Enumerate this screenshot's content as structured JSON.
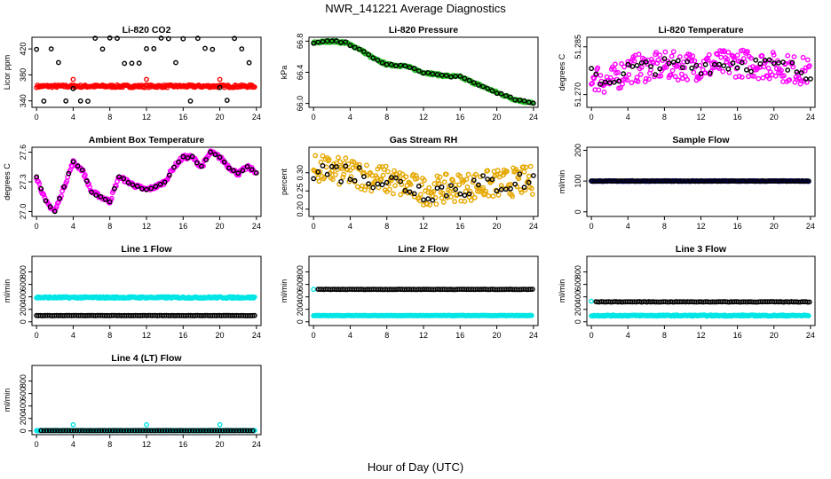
{
  "figure": {
    "title": "NWR_141221  Average Diagnostics",
    "xlabel": "Hour of Day (UTC)"
  },
  "chart_data": [
    {
      "type": "scatter",
      "title": "Li-820 CO2",
      "ylabel": "Licor ppm",
      "xlim": [
        -0.5,
        24.5
      ],
      "ylim": [
        330,
        438
      ],
      "xticks": [
        0,
        4,
        8,
        12,
        16,
        20,
        24
      ],
      "yticks": [
        340,
        380,
        420
      ],
      "series": [
        {
          "color": "#ff0000",
          "pattern": "band",
          "level": 362.5,
          "spread": 2,
          "outliers": [
            [
              4,
              373
            ],
            [
              12,
              373
            ],
            [
              20,
              373
            ]
          ]
        },
        {
          "color": "#000000",
          "pattern": "levels",
          "levels": [
            340,
            360,
            398,
            420,
            436
          ]
        }
      ]
    },
    {
      "type": "scatter",
      "title": "Li-820 Pressure",
      "ylabel": "kPa",
      "xlim": [
        -0.5,
        24.5
      ],
      "ylim": [
        65.95,
        66.85
      ],
      "xticks": [
        0,
        4,
        8,
        12,
        16,
        20,
        24
      ],
      "yticks": [
        66.0,
        66.4,
        66.8
      ],
      "yprec": 1,
      "series": [
        {
          "color": "#22bb22",
          "pattern": "curve",
          "noise": 0.015,
          "knots": [
            [
              0,
              66.78
            ],
            [
              2,
              66.8
            ],
            [
              3.5,
              66.78
            ],
            [
              5,
              66.7
            ],
            [
              6.5,
              66.58
            ],
            [
              8,
              66.5
            ],
            [
              10,
              66.48
            ],
            [
              12,
              66.4
            ],
            [
              14,
              66.36
            ],
            [
              16,
              66.34
            ],
            [
              18,
              66.24
            ],
            [
              20,
              66.14
            ],
            [
              22,
              66.05
            ],
            [
              24,
              66.0
            ]
          ]
        },
        {
          "color": "#000000",
          "pattern": "curve",
          "noise": 0.01,
          "step": 0.5,
          "knots": [
            [
              0,
              66.78
            ],
            [
              2,
              66.8
            ],
            [
              3.5,
              66.78
            ],
            [
              5,
              66.7
            ],
            [
              6.5,
              66.58
            ],
            [
              8,
              66.5
            ],
            [
              10,
              66.48
            ],
            [
              12,
              66.4
            ],
            [
              14,
              66.36
            ],
            [
              16,
              66.34
            ],
            [
              18,
              66.24
            ],
            [
              20,
              66.14
            ],
            [
              22,
              66.05
            ],
            [
              24,
              66.0
            ]
          ]
        }
      ]
    },
    {
      "type": "scatter",
      "title": "Li-820 Temperature",
      "ylabel": "degrees C",
      "xlim": [
        -0.5,
        24.5
      ],
      "ylim": [
        51.266,
        51.288
      ],
      "xticks": [
        0,
        4,
        8,
        12,
        16,
        20,
        24
      ],
      "yticks": [
        51.27,
        51.285
      ],
      "yprec": 3,
      "series": [
        {
          "color": "#ff00ff",
          "pattern": "curve",
          "noise": 0.0045,
          "knots": [
            [
              0,
              51.276
            ],
            [
              2,
              51.274
            ],
            [
              4,
              51.278
            ],
            [
              8,
              51.279
            ],
            [
              12,
              51.279
            ],
            [
              16,
              51.28
            ],
            [
              20,
              51.279
            ],
            [
              24,
              51.277
            ]
          ]
        },
        {
          "color": "#000000",
          "pattern": "curve",
          "noise": 0.0025,
          "step": 0.5,
          "knots": [
            [
              0,
              51.276
            ],
            [
              2,
              51.274
            ],
            [
              4,
              51.278
            ],
            [
              8,
              51.279
            ],
            [
              12,
              51.279
            ],
            [
              16,
              51.28
            ],
            [
              20,
              51.279
            ],
            [
              24,
              51.277
            ]
          ]
        }
      ]
    },
    {
      "type": "scatter",
      "title": "Ambient Box Temperature",
      "ylabel": "degrees C",
      "xlim": [
        -0.5,
        24.5
      ],
      "ylim": [
        26.95,
        27.65
      ],
      "xticks": [
        0,
        4,
        8,
        12,
        16,
        20,
        24
      ],
      "yticks": [
        27.0,
        27.3,
        27.6
      ],
      "yprec": 1,
      "series": [
        {
          "color": "#ff00ff",
          "pattern": "curve",
          "noise": 0.02,
          "knots": [
            [
              0,
              27.35
            ],
            [
              1,
              27.1
            ],
            [
              2,
              27.0
            ],
            [
              3,
              27.25
            ],
            [
              4,
              27.5
            ],
            [
              5,
              27.42
            ],
            [
              6,
              27.2
            ],
            [
              7,
              27.15
            ],
            [
              8,
              27.1
            ],
            [
              9,
              27.35
            ],
            [
              10,
              27.3
            ],
            [
              11,
              27.25
            ],
            [
              12,
              27.22
            ],
            [
              13,
              27.25
            ],
            [
              14,
              27.3
            ],
            [
              15,
              27.45
            ],
            [
              16,
              27.55
            ],
            [
              17,
              27.55
            ],
            [
              18,
              27.45
            ],
            [
              19,
              27.6
            ],
            [
              20,
              27.55
            ],
            [
              21,
              27.45
            ],
            [
              22,
              27.38
            ],
            [
              23,
              27.45
            ],
            [
              24,
              27.4
            ]
          ]
        },
        {
          "color": "#000000",
          "pattern": "curve",
          "noise": 0.01,
          "step": 0.5,
          "knots": [
            [
              0,
              27.35
            ],
            [
              1,
              27.1
            ],
            [
              2,
              27.0
            ],
            [
              3,
              27.25
            ],
            [
              4,
              27.5
            ],
            [
              5,
              27.42
            ],
            [
              6,
              27.2
            ],
            [
              7,
              27.15
            ],
            [
              8,
              27.1
            ],
            [
              9,
              27.35
            ],
            [
              10,
              27.3
            ],
            [
              11,
              27.25
            ],
            [
              12,
              27.22
            ],
            [
              13,
              27.25
            ],
            [
              14,
              27.3
            ],
            [
              15,
              27.45
            ],
            [
              16,
              27.55
            ],
            [
              17,
              27.55
            ],
            [
              18,
              27.45
            ],
            [
              19,
              27.6
            ],
            [
              20,
              27.55
            ],
            [
              21,
              27.45
            ],
            [
              22,
              27.38
            ],
            [
              23,
              27.45
            ],
            [
              24,
              27.4
            ]
          ]
        }
      ]
    },
    {
      "type": "scatter",
      "title": "Gas Stream RH",
      "ylabel": "percent",
      "xlim": [
        -0.5,
        24.5
      ],
      "ylim": [
        0.18,
        0.37
      ],
      "xticks": [
        0,
        4,
        8,
        12,
        16,
        20,
        24
      ],
      "yticks": [
        0.2,
        0.25,
        0.3
      ],
      "yprec": 2,
      "series": [
        {
          "color": "#e6a800",
          "pattern": "curve",
          "noise": 0.04,
          "knots": [
            [
              0,
              0.31
            ],
            [
              4,
              0.3
            ],
            [
              8,
              0.28
            ],
            [
              12,
              0.25
            ],
            [
              16,
              0.26
            ],
            [
              20,
              0.27
            ],
            [
              24,
              0.28
            ]
          ]
        },
        {
          "color": "#000000",
          "pattern": "curve",
          "noise": 0.03,
          "step": 0.5,
          "knots": [
            [
              0,
              0.31
            ],
            [
              4,
              0.3
            ],
            [
              8,
              0.28
            ],
            [
              12,
              0.25
            ],
            [
              16,
              0.26
            ],
            [
              20,
              0.27
            ],
            [
              24,
              0.28
            ]
          ]
        }
      ]
    },
    {
      "type": "scatter",
      "title": "Sample Flow",
      "ylabel": "ml/min",
      "xlim": [
        -0.5,
        24.5
      ],
      "ylim": [
        -15,
        210
      ],
      "xticks": [
        0,
        4,
        8,
        12,
        16,
        20,
        24
      ],
      "yticks": [
        0,
        100,
        200
      ],
      "series": [
        {
          "color": "#0000cc",
          "pattern": "band",
          "level": 100,
          "spread": 1
        },
        {
          "color": "#000000",
          "pattern": "band",
          "level": 100,
          "spread": 0.5,
          "step": 0.2
        }
      ]
    },
    {
      "type": "scatter",
      "title": "Line 1 Flow",
      "ylabel": "ml/min",
      "xlim": [
        -0.5,
        24.5
      ],
      "ylim": [
        -60,
        1050
      ],
      "xticks": [
        0,
        4,
        8,
        12,
        16,
        20,
        24
      ],
      "yticks": [
        0,
        200,
        400,
        600,
        800
      ],
      "series": [
        {
          "color": "#00e5e5",
          "pattern": "band",
          "level": 390,
          "spread": 12
        },
        {
          "color": "#000000",
          "pattern": "band",
          "level": 100,
          "spread": 2,
          "step": 0.2
        }
      ]
    },
    {
      "type": "scatter",
      "title": "Line 2 Flow",
      "ylabel": "ml/min",
      "xlim": [
        -0.5,
        24.5
      ],
      "ylim": [
        -60,
        1050
      ],
      "xticks": [
        0,
        4,
        8,
        12,
        16,
        20,
        24
      ],
      "yticks": [
        0,
        200,
        400,
        600,
        800
      ],
      "series": [
        {
          "color": "#00e5e5",
          "pattern": "band",
          "level": 100,
          "spread": 4,
          "extra": [
            [
              0,
              520
            ]
          ]
        },
        {
          "color": "#000000",
          "pattern": "band",
          "level": 520,
          "spread": 3,
          "step": 0.2,
          "xstart": 0.5
        }
      ]
    },
    {
      "type": "scatter",
      "title": "Line 3 Flow",
      "ylabel": "ml/min",
      "xlim": [
        -0.5,
        24.5
      ],
      "ylim": [
        -60,
        1050
      ],
      "xticks": [
        0,
        4,
        8,
        12,
        16,
        20,
        24
      ],
      "yticks": [
        0,
        200,
        400,
        600,
        800
      ],
      "series": [
        {
          "color": "#00e5e5",
          "pattern": "band",
          "level": 100,
          "spread": 8,
          "extra": [
            [
              0,
              330
            ]
          ]
        },
        {
          "color": "#000000",
          "pattern": "band",
          "level": 320,
          "spread": 4,
          "step": 0.2,
          "xstart": 0.5
        }
      ]
    },
    {
      "type": "scatter",
      "title": "Line 4 (LT) Flow",
      "ylabel": "ml/min",
      "xlim": [
        -0.5,
        24.5
      ],
      "ylim": [
        -60,
        1050
      ],
      "xticks": [
        0,
        4,
        8,
        12,
        16,
        20,
        24
      ],
      "yticks": [
        0,
        200,
        400,
        600,
        800
      ],
      "series": [
        {
          "color": "#00e5e5",
          "pattern": "band",
          "level": 5,
          "spread": 2,
          "outliers": [
            [
              4,
              100
            ],
            [
              12,
              100
            ],
            [
              20,
              100
            ]
          ]
        },
        {
          "color": "#000000",
          "pattern": "band",
          "level": 5,
          "spread": 1,
          "step": 0.3,
          "xstart": 0.5
        }
      ]
    }
  ]
}
